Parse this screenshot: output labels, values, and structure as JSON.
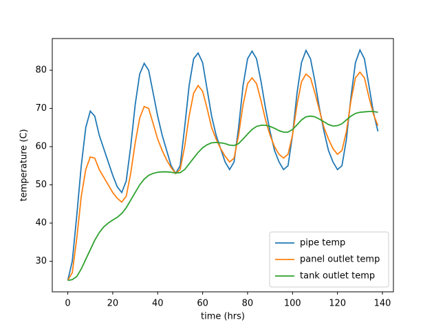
{
  "chart_data": {
    "type": "line",
    "x_label": "time (hrs)",
    "y_label": "temperature (C)",
    "x": [
      0,
      2,
      4,
      6,
      8,
      10,
      12,
      14,
      16,
      18,
      20,
      22,
      24,
      26,
      28,
      30,
      32,
      34,
      36,
      38,
      40,
      42,
      44,
      46,
      48,
      50,
      52,
      54,
      56,
      58,
      60,
      62,
      64,
      66,
      68,
      70,
      72,
      74,
      76,
      78,
      80,
      82,
      84,
      86,
      88,
      90,
      92,
      94,
      96,
      98,
      100,
      102,
      104,
      106,
      108,
      110,
      112,
      114,
      116,
      118,
      120,
      122,
      124,
      126,
      128,
      130,
      132,
      134,
      136,
      138
    ],
    "series": [
      {
        "name": "pipe temp",
        "color": "#1f77b4",
        "values": [
          25,
          30,
          42,
          55,
          65,
          69.3,
          68,
          63,
          59.5,
          56,
          52.5,
          49.5,
          48,
          51,
          60,
          71,
          79,
          81.8,
          80,
          74,
          68,
          63,
          59,
          55,
          53,
          55,
          65,
          76,
          83,
          84.5,
          82,
          75,
          68,
          63,
          59.5,
          56,
          54,
          56,
          65,
          76,
          83,
          85,
          83,
          77,
          70,
          64,
          59,
          56,
          54,
          55,
          63,
          74,
          82,
          85.2,
          83,
          77,
          70,
          64,
          59,
          56,
          54,
          55,
          62,
          73,
          82,
          85.3,
          83,
          76,
          69,
          64
        ]
      },
      {
        "name": "panel outlet temp",
        "color": "#ff7f0e",
        "values": [
          25,
          27,
          36,
          47,
          54,
          57.3,
          57,
          54,
          52,
          50,
          48,
          46.5,
          45.5,
          47,
          53,
          61,
          67.5,
          70.5,
          70,
          66,
          62,
          59,
          56.5,
          54.5,
          53,
          54,
          60,
          68,
          74,
          76,
          74.5,
          70,
          65,
          62,
          59.5,
          57.5,
          56,
          57,
          63,
          71,
          76.5,
          78,
          76.5,
          72,
          67,
          63,
          60,
          58,
          57,
          58,
          63,
          71,
          77,
          79,
          78,
          74,
          69.5,
          65,
          62,
          59.5,
          58,
          59,
          64,
          72,
          78,
          79.5,
          78,
          73,
          68.5,
          65.5
        ]
      },
      {
        "name": "tank outlet temp",
        "color": "#2ca02c",
        "values": [
          25,
          25.2,
          26,
          28,
          30.5,
          33,
          35.5,
          37.5,
          39,
          40,
          40.8,
          41.5,
          42.5,
          44,
          46,
          48,
          50,
          51.5,
          52.5,
          53,
          53.3,
          53.4,
          53.4,
          53.3,
          53.1,
          53.2,
          54,
          55.5,
          57,
          58.5,
          59.7,
          60.5,
          61,
          61.1,
          61,
          60.8,
          60.4,
          60.3,
          60.8,
          62,
          63.3,
          64.5,
          65.3,
          65.6,
          65.6,
          65.3,
          64.8,
          64.2,
          63.8,
          63.8,
          64.5,
          65.7,
          67,
          67.8,
          68,
          67.8,
          67.2,
          66.5,
          65.8,
          65.4,
          65.5,
          66,
          67,
          68,
          68.7,
          69,
          69.1,
          69.2,
          69.2,
          69
        ]
      }
    ],
    "xlim": [
      -6.9,
      144.9
    ],
    "ylim": [
      22,
      88.3
    ],
    "xticks": [
      0,
      20,
      40,
      60,
      80,
      100,
      120,
      140
    ],
    "yticks": [
      30,
      40,
      50,
      60,
      70,
      80
    ],
    "legend": "lower right"
  }
}
